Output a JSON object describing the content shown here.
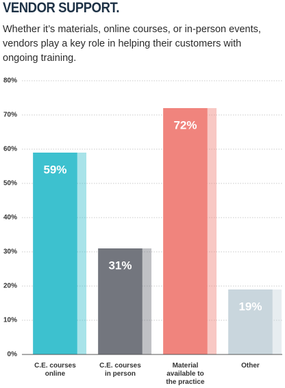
{
  "chart_data": {
    "type": "bar",
    "title": "VENDOR SUPPORT.",
    "subtitle": "Whether it’s materials, online courses, or in-person events, vendors play a key role in helping their customers with ongoing training.",
    "categories": [
      "C.E. courses online",
      "C.E. courses in person",
      "Material available to the practice",
      "Other"
    ],
    "values": [
      59,
      31,
      72,
      19
    ],
    "value_labels": [
      "59%",
      "31%",
      "72%",
      "19%"
    ],
    "colors": [
      "#3dc1cf",
      "#73767e",
      "#f0847d",
      "#c9d6dd"
    ],
    "ylim": [
      0,
      80
    ],
    "yticks": [
      {
        "value": 0,
        "label": "0%"
      },
      {
        "value": 10,
        "label": "10%"
      },
      {
        "value": 20,
        "label": "20%"
      },
      {
        "value": 30,
        "label": "30%"
      },
      {
        "value": 40,
        "label": "40%"
      },
      {
        "value": 50,
        "label": "50%"
      },
      {
        "value": 60,
        "label": "60%"
      },
      {
        "value": 70,
        "label": "70%"
      },
      {
        "value": 80,
        "label": "80%"
      }
    ],
    "grid": true
  }
}
